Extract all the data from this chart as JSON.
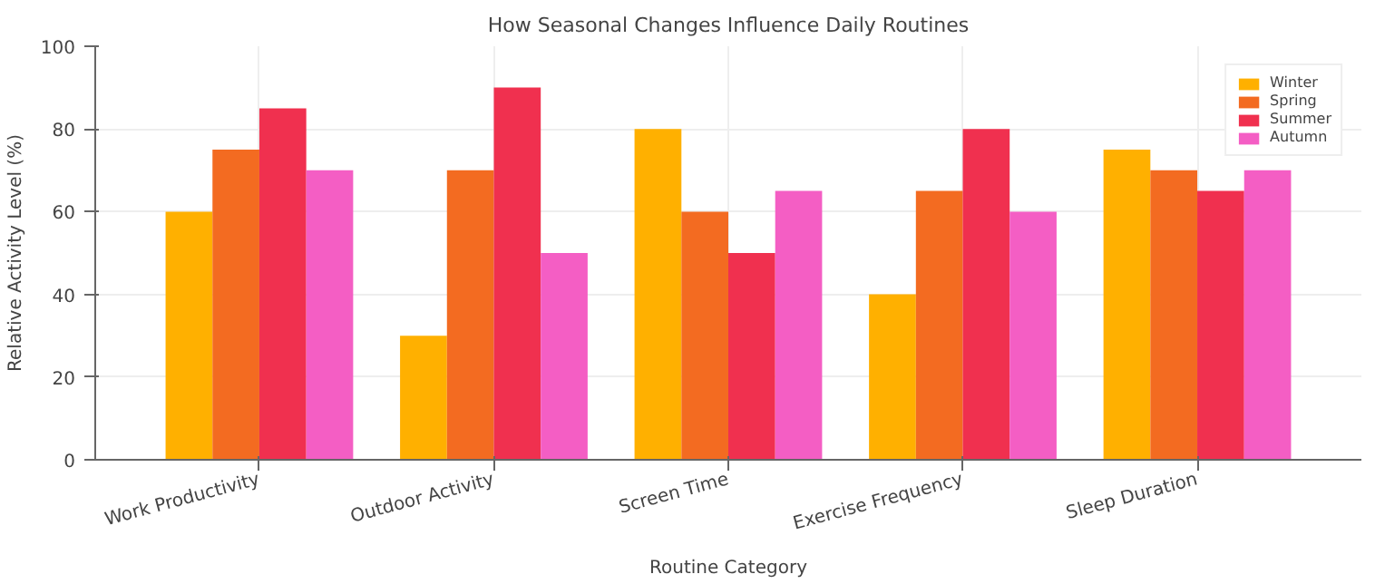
{
  "chart_data": {
    "type": "bar",
    "title": "How Seasonal Changes Influence Daily Routines",
    "xlabel": "Routine Category",
    "ylabel": "Relative Activity Level (%)",
    "categories": [
      "Work Productivity",
      "Outdoor Activity",
      "Screen Time",
      "Exercise Frequency",
      "Sleep Duration"
    ],
    "series": [
      {
        "name": "Winter",
        "color": "#ffb000",
        "values": [
          60,
          30,
          80,
          40,
          75
        ]
      },
      {
        "name": "Spring",
        "color": "#f36b21",
        "values": [
          75,
          70,
          60,
          65,
          70
        ]
      },
      {
        "name": "Summer",
        "color": "#f0304f",
        "values": [
          85,
          90,
          50,
          80,
          65
        ]
      },
      {
        "name": "Autumn",
        "color": "#f45ec4",
        "values": [
          70,
          50,
          65,
          60,
          70
        ]
      }
    ],
    "ylim": [
      0,
      100
    ],
    "yticks": [
      0,
      20,
      40,
      60,
      80,
      100
    ],
    "grid": true,
    "legend": "top right"
  }
}
